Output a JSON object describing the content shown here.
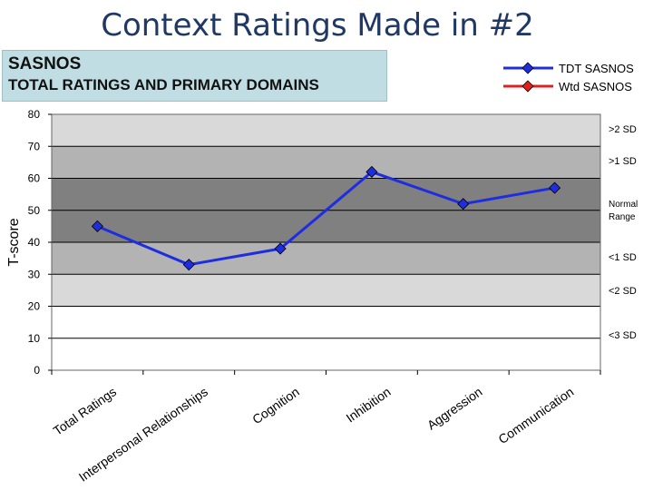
{
  "slide_title": "Context Ratings Made in #2",
  "header": {
    "line1": "SASNOS",
    "line2": "TOTAL RATINGS AND PRIMARY DOMAINS"
  },
  "legend": [
    {
      "label": "TDT SASNOS",
      "color": "#1f2de0",
      "marker": "diamond"
    },
    {
      "label": "Wtd SASNOS",
      "color": "#e02020",
      "marker": "diamond"
    }
  ],
  "colors": {
    "line": "#1f2de0",
    "gt2sd": "#d9d9d9",
    "gt1sd": "#b3b3b3",
    "normal": "#808080",
    "lt1sd": "#b3b3b3",
    "lt2sd": "#d9d9d9"
  },
  "chart_data": {
    "type": "line",
    "categories": [
      "Total Ratings",
      "Interpersonal Relationships",
      "Cognition",
      "Inhibition",
      "Aggression",
      "Communication"
    ],
    "series": [
      {
        "name": "TDT SASNOS",
        "values": [
          45,
          33,
          38,
          62,
          52,
          57
        ]
      }
    ],
    "ylabel": "T-score",
    "ylim": [
      0,
      80
    ],
    "yticks": [
      0,
      10,
      20,
      30,
      40,
      50,
      60,
      70,
      80
    ],
    "bands": [
      {
        "from": 70,
        "to": 80,
        "label": ">2 SD"
      },
      {
        "from": 60,
        "to": 70,
        "label": ">1 SD"
      },
      {
        "from": 40,
        "to": 60,
        "label": "Normal Range"
      },
      {
        "from": 30,
        "to": 40,
        "label": "<1 SD"
      },
      {
        "from": 20,
        "to": 30,
        "label": "<2 SD"
      },
      {
        "from": 0,
        "to": 20,
        "label": "<3 SD"
      }
    ],
    "grid": true
  }
}
